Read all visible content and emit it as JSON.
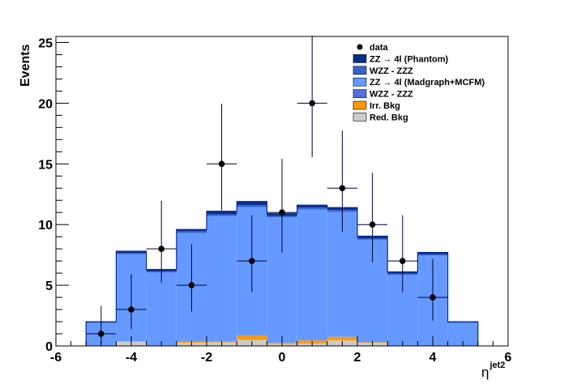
{
  "chart_data": {
    "type": "bar",
    "xlabel": "η",
    "xlabel_superscript": "jet2",
    "ylabel": "Events",
    "xlim": [
      -6,
      6
    ],
    "ylim": [
      0,
      25.5
    ],
    "x_ticks": [
      -6,
      -4,
      -2,
      0,
      2,
      4,
      6
    ],
    "y_ticks": [
      0,
      5,
      10,
      15,
      20,
      25
    ],
    "bin_edges": [
      -5.2,
      -4.4,
      -3.6,
      -2.8,
      -2.0,
      -1.2,
      -0.4,
      0.4,
      1.2,
      2.0,
      2.8,
      3.6,
      4.4,
      5.2
    ],
    "legend_position": "top-right",
    "stack_series": [
      {
        "name": "Red. Bkg",
        "color": "#cccccc",
        "values": [
          0.0,
          0.35,
          0.0,
          0.25,
          0.3,
          0.5,
          0.15,
          0.2,
          0.45,
          0.25,
          0.0,
          0.0,
          0.0
        ]
      },
      {
        "name": "Irr. Bkg",
        "color": "#ff9900",
        "values": [
          0.0,
          0.05,
          0.0,
          0.1,
          0.1,
          0.35,
          0.1,
          0.25,
          0.3,
          0.05,
          0.0,
          0.0,
          0.0
        ]
      },
      {
        "name": "WZZ - ZZZ",
        "color": "#5170db",
        "values": [
          0.0,
          0.0,
          0.0,
          0.0,
          0.0,
          0.0,
          0.0,
          0.0,
          0.0,
          0.0,
          0.0,
          0.0,
          0.0
        ]
      },
      {
        "name": "ZZ → 4l (Madgraph+MCFM)",
        "color": "#6699ff",
        "values": [
          1.9,
          7.15,
          6.05,
          8.95,
          10.3,
          10.6,
          10.35,
          10.8,
          10.3,
          8.45,
          5.85,
          7.45,
          1.9
        ]
      },
      {
        "name": "WZZ - ZZZ",
        "color": "#3366cc",
        "values": [
          0.05,
          0.1,
          0.1,
          0.15,
          0.15,
          0.15,
          0.1,
          0.15,
          0.15,
          0.1,
          0.1,
          0.1,
          0.05
        ]
      },
      {
        "name": "ZZ → 4l (Phantom)",
        "color": "#0a2d94",
        "values": [
          0.05,
          0.15,
          0.15,
          0.15,
          0.25,
          0.3,
          0.2,
          0.2,
          0.2,
          0.2,
          0.15,
          0.15,
          0.05
        ]
      }
    ],
    "data_points": {
      "name": "data",
      "x": [
        -4.8,
        -4.0,
        -3.2,
        -2.4,
        -1.6,
        -0.8,
        0.0,
        0.8,
        1.6,
        2.4,
        3.2,
        4.0
      ],
      "y": [
        1,
        3,
        8,
        5,
        15,
        7,
        11,
        20,
        13,
        10,
        7,
        4
      ],
      "err_lo": [
        0.83,
        1.63,
        2.79,
        2.16,
        3.83,
        2.58,
        3.3,
        4.44,
        3.6,
        3.11,
        2.58,
        1.91
      ],
      "err_hi": [
        2.3,
        2.92,
        3.96,
        3.38,
        4.96,
        3.77,
        4.41,
        5.56,
        4.73,
        4.26,
        3.77,
        3.16
      ]
    },
    "legend": [
      {
        "label": "data",
        "kind": "marker",
        "color": "#000000"
      },
      {
        "label": "ZZ → 4l (Phantom)",
        "kind": "box",
        "color": "#0a2d94"
      },
      {
        "label": "WZZ - ZZZ",
        "kind": "box",
        "color": "#3366cc"
      },
      {
        "label": "ZZ → 4l (Madgraph+MCFM)",
        "kind": "box",
        "color": "#6699ff"
      },
      {
        "label": "WZZ - ZZZ",
        "kind": "box",
        "color": "#5170db"
      },
      {
        "label": "Irr. Bkg",
        "kind": "box",
        "color": "#ff9900"
      },
      {
        "label": "Red. Bkg",
        "kind": "box",
        "color": "#cccccc"
      }
    ]
  }
}
